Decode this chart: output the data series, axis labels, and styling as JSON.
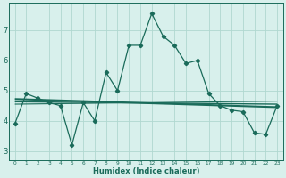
{
  "x": [
    0,
    1,
    2,
    3,
    4,
    5,
    6,
    7,
    8,
    9,
    10,
    11,
    12,
    13,
    14,
    15,
    16,
    17,
    18,
    19,
    20,
    21,
    22,
    23
  ],
  "y_main": [
    3.9,
    4.9,
    4.75,
    4.6,
    4.5,
    3.2,
    4.6,
    4.0,
    5.6,
    5.0,
    6.5,
    6.5,
    7.55,
    6.8,
    6.5,
    5.9,
    6.0,
    4.9,
    4.5,
    4.35,
    4.3,
    3.6,
    3.55,
    4.5
  ],
  "bg_color": "#d8f0ec",
  "line_color": "#1a6b5a",
  "grid_color": "#b0d8d0",
  "ylabel_values": [
    3,
    4,
    5,
    6,
    7
  ],
  "ylim": [
    2.7,
    7.9
  ],
  "xlim": [
    -0.5,
    23.5
  ],
  "xlabel": "Humidex (Indice chaleur)",
  "reg_lines": [
    {
      "x0": 0,
      "y0": 4.72,
      "x1": 23,
      "y1": 4.45,
      "lw": 1.5
    },
    {
      "x0": 0,
      "y0": 4.63,
      "x1": 23,
      "y1": 4.55,
      "lw": 1.0
    },
    {
      "x0": 0,
      "y0": 4.55,
      "x1": 23,
      "y1": 4.65,
      "lw": 0.8
    }
  ]
}
